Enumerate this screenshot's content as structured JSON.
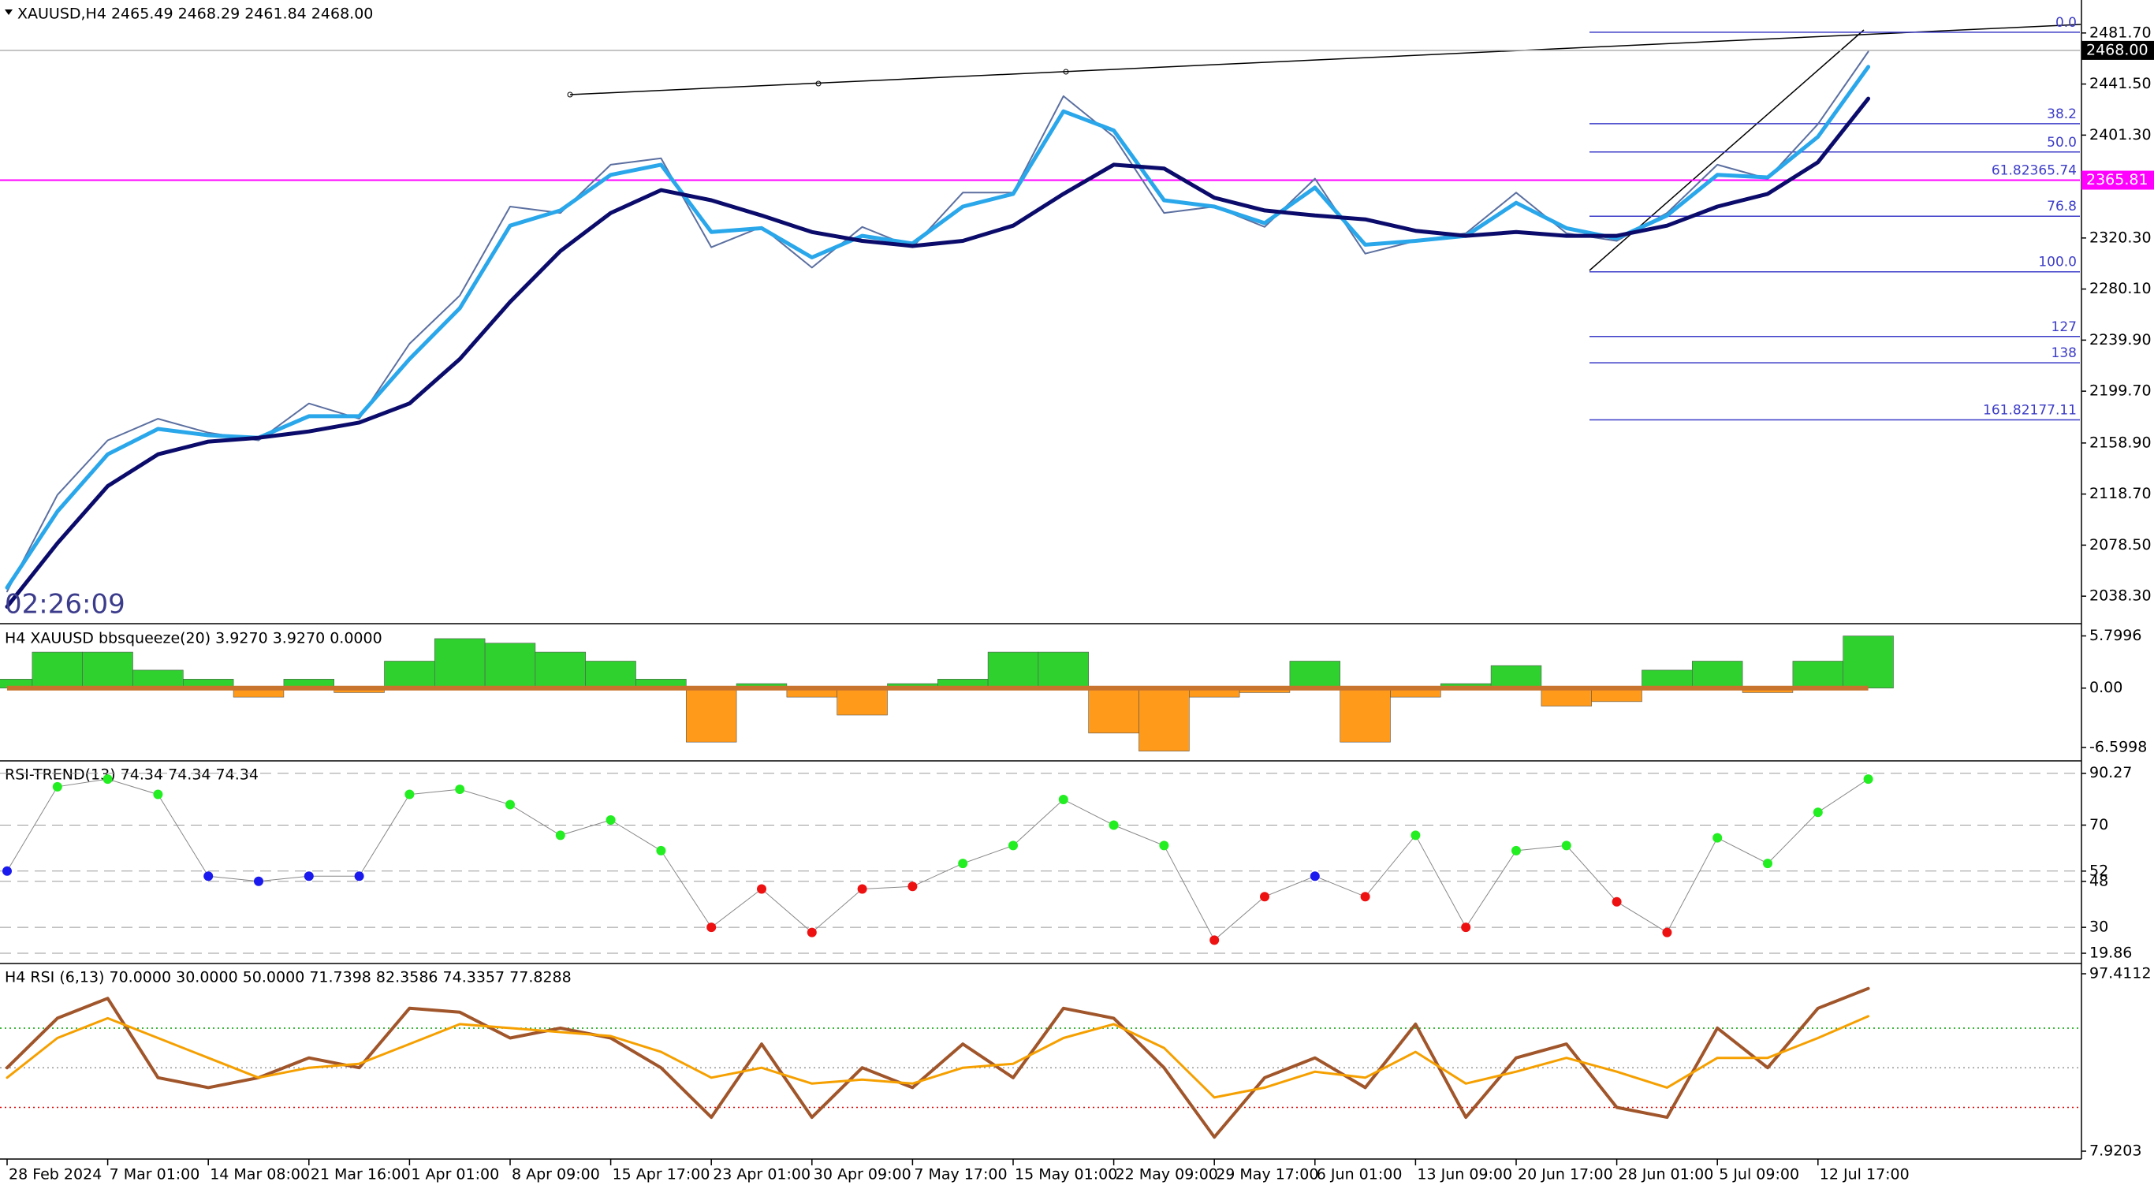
{
  "chart_data": [
    {
      "type": "line",
      "title": "XAUUSD,H4  2465.49 2468.29 2461.84 2468.00",
      "timer": "02:26:09",
      "categories": [
        "28 Feb 2024",
        null,
        "7 Mar 01:00",
        null,
        "14 Mar 08:00",
        null,
        "21 Mar 16:00",
        null,
        "1 Apr 01:00",
        null,
        "8 Apr 09:00",
        null,
        "15 Apr 17:00",
        null,
        "23 Apr 01:00",
        null,
        "30 Apr 09:00",
        null,
        "7 May 17:00",
        null,
        "15 May 01:00",
        null,
        "22 May 09:00",
        null,
        "29 May 17:00",
        null,
        "6 Jun 01:00",
        null,
        "13 Jun 09:00",
        null,
        "20 Jun 17:00",
        null,
        "28 Jun 01:00",
        null,
        "5 Jul 09:00",
        null,
        "12 Jul 17:00",
        null
      ],
      "series": [
        {
          "color": "#5b6fa0",
          "width": 2,
          "values": [
            2042,
            2118,
            2161,
            2178,
            2167,
            2161,
            2190,
            2178,
            2237,
            2275,
            2345,
            2340,
            2378,
            2383,
            2313,
            2329,
            2297,
            2329,
            2313,
            2356,
            2356,
            2432,
            2400,
            2340,
            2345,
            2329,
            2367,
            2308,
            2318,
            2324,
            2356,
            2324,
            2318,
            2340,
            2378,
            2367,
            2410,
            2467
          ]
        },
        {
          "color": "#2aa7ea",
          "width": 5,
          "values": [
            2045,
            2105,
            2150,
            2170,
            2165,
            2163,
            2180,
            2180,
            2225,
            2265,
            2330,
            2342,
            2370,
            2378,
            2325,
            2328,
            2305,
            2322,
            2316,
            2345,
            2355,
            2420,
            2405,
            2350,
            2345,
            2332,
            2360,
            2315,
            2318,
            2322,
            2348,
            2328,
            2320,
            2338,
            2370,
            2368,
            2400,
            2455
          ]
        },
        {
          "color": "#0b0b6b",
          "width": 5,
          "values": [
            2030,
            2080,
            2125,
            2150,
            2160,
            2163,
            2168,
            2175,
            2190,
            2225,
            2270,
            2310,
            2340,
            2358,
            2350,
            2338,
            2325,
            2318,
            2314,
            2318,
            2330,
            2355,
            2378,
            2375,
            2352,
            2342,
            2338,
            2335,
            2326,
            2322,
            2325,
            2322,
            2322,
            2330,
            2345,
            2355,
            2380,
            2430
          ]
        }
      ],
      "ylim": [
        2017.9,
        2505.8
      ],
      "yticks": [
        {
          "value": 2481.7,
          "label": "2481.70"
        },
        {
          "value": 2441.5,
          "label": "2441.50"
        },
        {
          "value": 2401.3,
          "label": "2401.30"
        },
        {
          "value": 2320.3,
          "label": "2320.30"
        },
        {
          "value": 2280.1,
          "label": "2280.10"
        },
        {
          "value": 2239.9,
          "label": "2239.90"
        },
        {
          "value": 2199.7,
          "label": "2199.70"
        },
        {
          "value": 2158.9,
          "label": "2158.90"
        },
        {
          "value": 2118.7,
          "label": "2118.70"
        },
        {
          "value": 2078.5,
          "label": "2078.50"
        },
        {
          "value": 2038.3,
          "label": "2038.30"
        }
      ],
      "hline": {
        "value": 2365.81,
        "color": "#ff00ff"
      },
      "last_price": {
        "value": 2468,
        "label": "2468.00"
      },
      "fib": {
        "from": 2293.69,
        "to": 2482.32,
        "color": "#3c3cc8",
        "levels": [
          {
            "value": 0,
            "label": "0.0"
          },
          38.2,
          {
            "value": 50,
            "label": "50.0"
          },
          61.8,
          76.8,
          {
            "value": 100,
            "label": "100.0"
          },
          127,
          138,
          161.8
        ],
        "prices": [
          null,
          null,
          null,
          2365.74,
          null,
          null,
          null,
          null,
          2177.11
        ]
      }
    },
    {
      "type": "histogram",
      "title": "H4 XAUUSD bbsqueeze(20) 3.9270 3.9270 0.0000",
      "values": [
        1,
        4,
        4,
        2,
        1,
        -1,
        1,
        -0.5,
        3,
        5.5,
        5,
        4,
        3,
        1,
        -6,
        0.5,
        -1,
        -3,
        0.5,
        1,
        4,
        4,
        -5,
        -7,
        -1,
        -0.5,
        3,
        -6,
        -1,
        0.5,
        2.5,
        -2,
        -1.5,
        2,
        3,
        -0.5,
        3,
        5.8
      ],
      "up_color": "#2fd12f",
      "down_color": "#ff9a1a",
      "zero_color": "#c8742f",
      "ylim": [
        -7.91,
        6.81
      ],
      "yticks": [
        5.7996,
        {
          "value": 0,
          "label": "0.00"
        },
        -6.5998
      ]
    },
    {
      "type": "dots",
      "title": "RSI-TREND(13) 74.34 74.34 74.34",
      "values": [
        52,
        85,
        88,
        82,
        50,
        48,
        50,
        50,
        82,
        84,
        78,
        66,
        72,
        60,
        30,
        45,
        28,
        45,
        46,
        55,
        62,
        80,
        70,
        62,
        25,
        42,
        50,
        42,
        66,
        30,
        60,
        62,
        40,
        28,
        65,
        55,
        75,
        88
      ],
      "up_color": "#22ee22",
      "down_color": "#ee1111",
      "neutral_color": "#1a1aee",
      "upper": 52,
      "lower": 48,
      "ylim": [
        16.47,
        94.2
      ],
      "yticks": [
        90.27,
        70,
        52,
        48,
        30,
        19.86
      ],
      "grid": true
    },
    {
      "type": "line",
      "title": "H4 RSI  (6,13) 70.0000 30.0000 50.0000 71.7398 82.3586 74.3357 77.8288",
      "series": [
        {
          "color": "#a0552a",
          "width": 4,
          "values": [
            50,
            75,
            85,
            45,
            40,
            45,
            55,
            50,
            80,
            78,
            65,
            70,
            65,
            50,
            25,
            62,
            25,
            50,
            40,
            62,
            45,
            80,
            75,
            50,
            15,
            45,
            55,
            40,
            72,
            25,
            55,
            62,
            30,
            25,
            70,
            50,
            80,
            90
          ]
        },
        {
          "color": "#f5a000",
          "width": 3,
          "values": [
            45,
            65,
            75,
            65,
            55,
            45,
            50,
            52,
            62,
            72,
            70,
            68,
            66,
            58,
            45,
            50,
            42,
            44,
            42,
            50,
            52,
            65,
            72,
            60,
            35,
            40,
            48,
            45,
            58,
            42,
            48,
            55,
            48,
            40,
            55,
            55,
            65,
            76
          ]
        }
      ],
      "levels": [
        {
          "value": 70,
          "color": "#00a000"
        },
        {
          "value": 30,
          "color": "#e00000"
        },
        {
          "value": 50,
          "color": "#999999"
        }
      ],
      "ylim": [
        5.14,
        101.4
      ],
      "yticks": [
        97.4112,
        7.9203
      ]
    }
  ]
}
